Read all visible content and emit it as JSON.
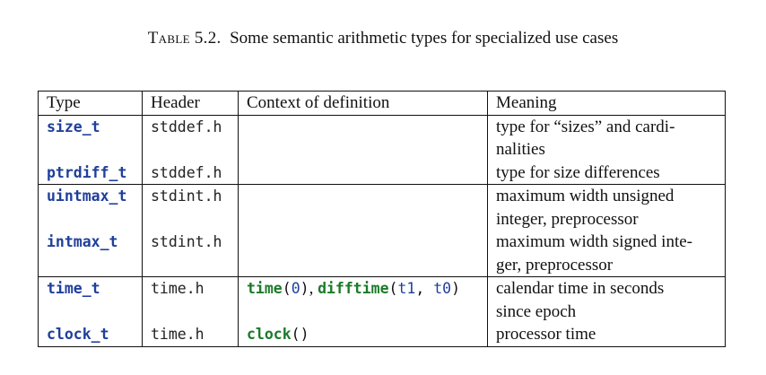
{
  "caption": {
    "label": "Table 5.2.",
    "text": "Some semantic arithmetic types for specialized use cases"
  },
  "columns": [
    "Type",
    "Header",
    "Context of definition",
    "Meaning"
  ],
  "rows": [
    {
      "type": "size_t",
      "header": "stddef.h",
      "context": "",
      "meaning": [
        "type for “sizes” and cardi-",
        "nalities"
      ]
    },
    {
      "type": "ptrdiff_t",
      "header": "stddef.h",
      "context": "",
      "meaning": [
        "type for size differences"
      ]
    },
    {
      "type": "uintmax_t",
      "header": "stdint.h",
      "context": "",
      "meaning": [
        "maximum width unsigned",
        "integer, preprocessor"
      ]
    },
    {
      "type": "intmax_t",
      "header": "stdint.h",
      "context": "",
      "meaning": [
        "maximum width signed inte-",
        "ger, preprocessor"
      ]
    },
    {
      "type": "time_t",
      "header": "time.h",
      "context": {
        "fn1": "time",
        "arg1": "0",
        "fn2": "difftime",
        "arg2a": "t1",
        "arg2b": "t0"
      },
      "meaning": [
        "calendar time in seconds",
        "since epoch"
      ]
    },
    {
      "type": "clock_t",
      "header": "time.h",
      "context": {
        "fn": "clock"
      },
      "meaning": [
        "processor time"
      ]
    }
  ],
  "colors": {
    "type_name": "#1f3f9a",
    "function_name": "#1c7a2a",
    "rules": "#111111"
  }
}
